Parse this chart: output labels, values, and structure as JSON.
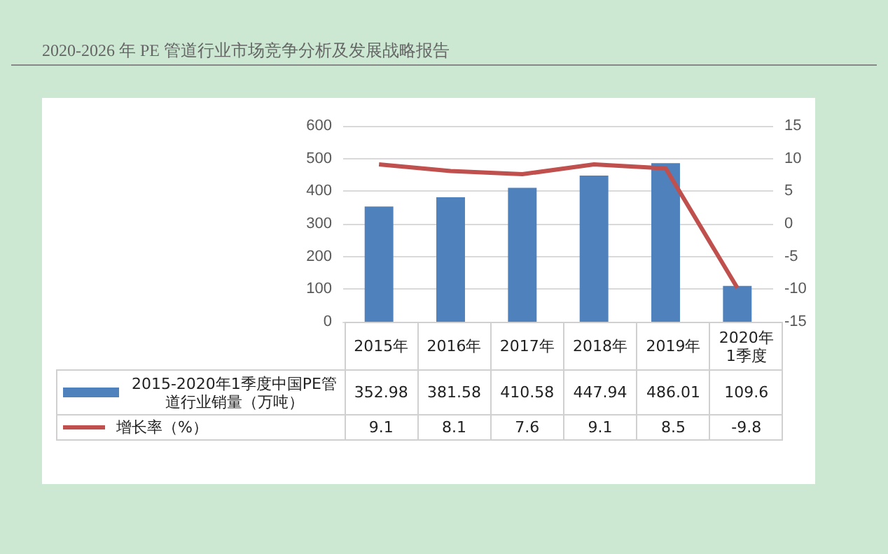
{
  "chart_data": {
    "type": "bar",
    "title": "2020-2026 年 PE 管道行业市场竞争分析及发展战略报告",
    "categories": [
      "2015年",
      "2016年",
      "2017年",
      "2018年",
      "2019年",
      "2020年1季度"
    ],
    "series": [
      {
        "name": "2015-2020年1季度中国PE管道行业销量（万吨）",
        "color": "#4f81bd",
        "values": [
          352.98,
          381.58,
          410.58,
          447.94,
          486.01,
          109.6
        ]
      },
      {
        "name": "增长率（%）",
        "type": "line",
        "axis": "y2",
        "color": "#c0504d",
        "values": [
          9.1,
          8.1,
          7.6,
          9.1,
          8.5,
          -9.8
        ]
      }
    ],
    "ylim": [
      0,
      600
    ],
    "yticks": [
      0,
      100,
      200,
      300,
      400,
      500,
      600
    ],
    "y2lim": [
      -15,
      15
    ],
    "y2ticks": [
      -15,
      -10,
      -5,
      0,
      5,
      10,
      15
    ],
    "grid": "y",
    "legend": "bottom",
    "data_labels": true,
    "marker": "none",
    "line_style": "solid"
  }
}
